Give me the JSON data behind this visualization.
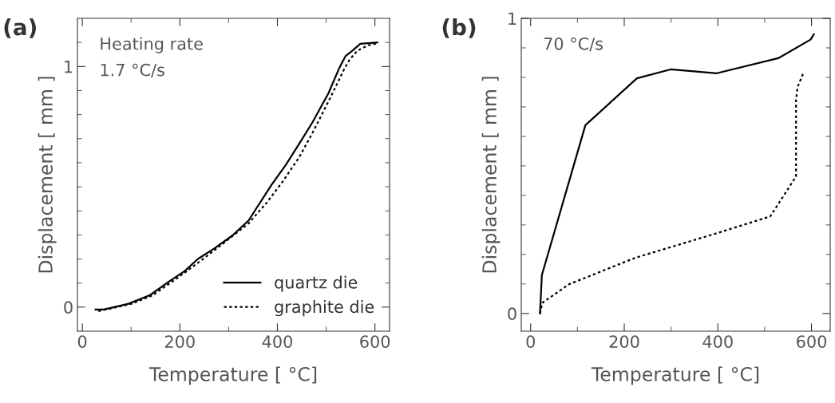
{
  "chart_data": [
    {
      "type": "line",
      "xlabel": "Temperature [ °C]",
      "ylabel": "Displacement [ mm ]",
      "annotations": [
        "(a)",
        "Heating rate\n1.7 °C/s"
      ],
      "xlim": [
        -10,
        630
      ],
      "xticks": [
        0,
        {
          "value": 100,
          "label": null
        },
        200,
        {
          "value": 300,
          "label": null
        },
        400,
        {
          "value": 500,
          "label": null
        },
        600
      ],
      "ylim": [
        -0.1,
        1.2
      ],
      "yticks": [
        0,
        {
          "value": 0.1,
          "label": null
        },
        {
          "value": 0.2,
          "label": null
        },
        {
          "value": 0.3,
          "label": null
        },
        {
          "value": 0.4,
          "label": null
        },
        {
          "value": 0.5,
          "label": null
        },
        {
          "value": 0.6,
          "label": null
        },
        {
          "value": 0.7,
          "label": null
        },
        {
          "value": 0.8,
          "label": null
        },
        {
          "value": 0.9,
          "label": null
        },
        1,
        {
          "value": 1.1,
          "label": null
        }
      ],
      "legend": "bottom right",
      "grid": false,
      "series": [
        {
          "name": "quartz die",
          "color": "#000000",
          "line_style": "solid",
          "x": [
            27,
            44,
            95,
            139,
            177,
            210,
            237,
            270,
            308,
            341,
            358,
            388,
            417,
            445,
            472,
            505,
            526,
            540,
            554,
            570,
            605
          ],
          "values": [
            -0.01,
            -0.01,
            0.014,
            0.05,
            0.105,
            0.15,
            0.2,
            0.243,
            0.298,
            0.36,
            0.414,
            0.508,
            0.59,
            0.68,
            0.768,
            0.89,
            0.99,
            1.044,
            1.066,
            1.094,
            1.1
          ]
        },
        {
          "name": "graphite die",
          "color": "#000000",
          "line_style": "dotted",
          "x": [
            33,
            101,
            145,
            199,
            243,
            286,
            341,
            379,
            412,
            445,
            472,
            505,
            537,
            548,
            564,
            586,
            605
          ],
          "values": [
            -0.017,
            0.014,
            0.05,
            0.127,
            0.193,
            0.26,
            0.348,
            0.436,
            0.525,
            0.624,
            0.724,
            0.856,
            0.989,
            1.028,
            1.066,
            1.088,
            1.096
          ]
        }
      ]
    },
    {
      "type": "line",
      "xlabel": "Temperature [ °C]",
      "ylabel": "Displacement [ mm ]",
      "annotations": [
        "(b)",
        "70 °C/s"
      ],
      "xlim": [
        -20,
        640
      ],
      "xticks": [
        0,
        {
          "value": 100,
          "label": null
        },
        200,
        {
          "value": 300,
          "label": null
        },
        400,
        {
          "value": 500,
          "label": null
        },
        600
      ],
      "ylim": [
        -0.06,
        1
      ],
      "yticks": [
        0,
        {
          "value": 0.1,
          "label": null
        },
        {
          "value": 0.2,
          "label": null
        },
        {
          "value": 0.3,
          "label": null
        },
        {
          "value": 0.4,
          "label": null
        },
        {
          "value": 0.5,
          "label": null
        },
        {
          "value": 0.6,
          "label": null
        },
        {
          "value": 0.7,
          "label": null
        },
        {
          "value": 0.8,
          "label": null
        },
        {
          "value": 0.9,
          "label": null
        },
        1
      ],
      "grid": false,
      "series": [
        {
          "color": "#000000",
          "line_style": "solid",
          "x": [
            20,
            24,
            117,
            227,
            299,
            398,
            529,
            598,
            605
          ],
          "values": [
            0,
            0.13,
            0.638,
            0.797,
            0.827,
            0.814,
            0.865,
            0.928,
            0.946
          ]
        },
        {
          "color": "#000000",
          "line_style": "dotted",
          "x": [
            20,
            25,
            82,
            224,
            394,
            512,
            567,
            567,
            570,
            584
          ],
          "values": [
            0,
            0.036,
            0.099,
            0.189,
            0.27,
            0.329,
            0.464,
            0.721,
            0.766,
            0.82
          ]
        }
      ]
    }
  ]
}
